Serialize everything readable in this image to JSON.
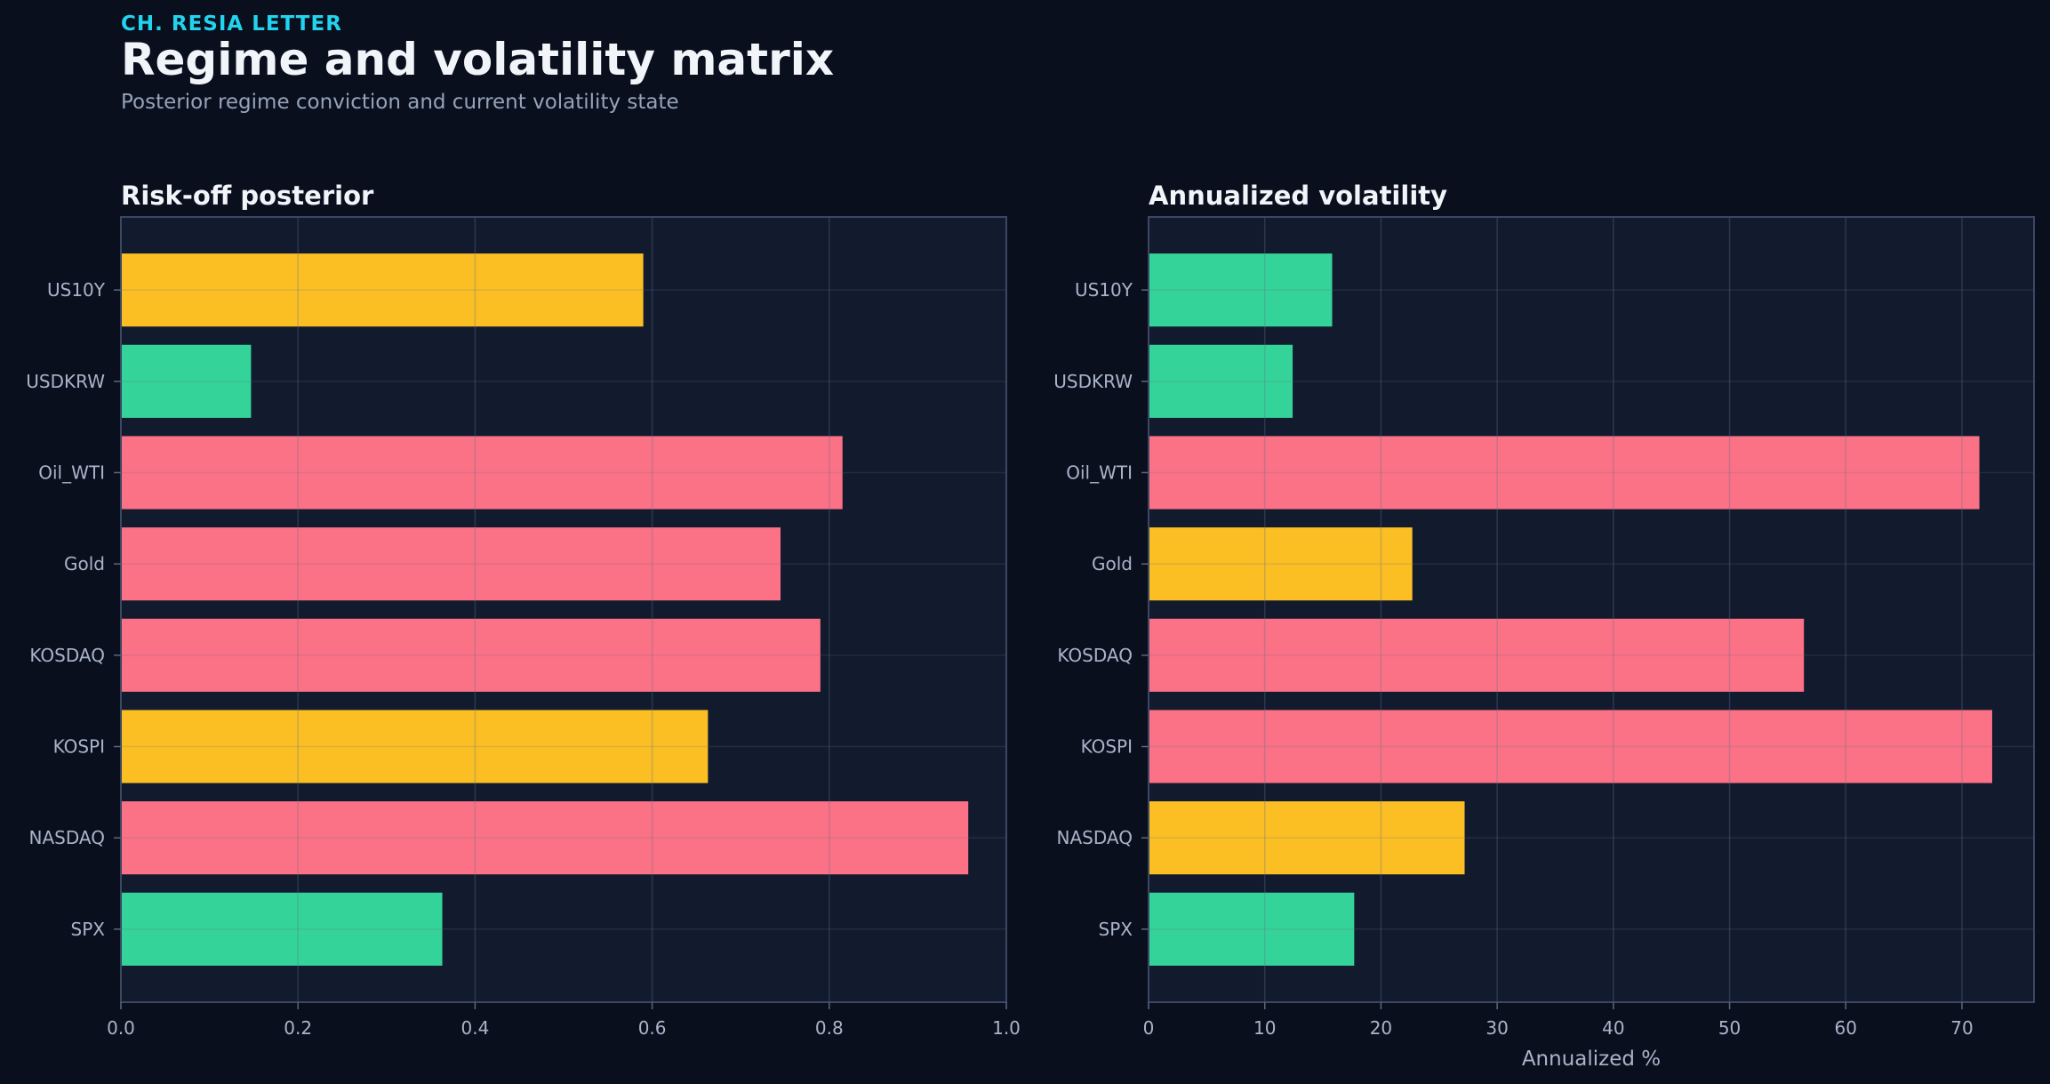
{
  "header": {
    "kicker": "CH. RESIA LETTER",
    "title": "Regime and volatility matrix",
    "subtitle": "Posterior regime conviction and current volatility state"
  },
  "colors": {
    "background": "#0a0f1e",
    "panel": "#121a2e",
    "red": "#fb7185",
    "amber": "#fbbf24",
    "green": "#34d399"
  },
  "chart_data": [
    {
      "type": "bar",
      "orientation": "horizontal",
      "title": "Risk-off posterior",
      "xlabel": "",
      "ylabel": "",
      "xlim": [
        0,
        1.0
      ],
      "xticks": [
        "0.0",
        "0.2",
        "0.4",
        "0.6",
        "0.8",
        "1.0"
      ],
      "xtick_values": [
        0,
        0.2,
        0.4,
        0.6,
        0.8,
        1.0
      ],
      "grid": true,
      "categories": [
        "US10Y",
        "USDKRW",
        "Oil_WTI",
        "Gold",
        "KOSDAQ",
        "KOSPI",
        "NASDAQ",
        "SPX"
      ],
      "values": [
        0.59,
        0.147,
        0.815,
        0.745,
        0.79,
        0.663,
        0.957,
        0.363
      ],
      "bar_colors": [
        "amber",
        "green",
        "red",
        "red",
        "red",
        "amber",
        "red",
        "green"
      ]
    },
    {
      "type": "bar",
      "orientation": "horizontal",
      "title": "Annualized volatility",
      "xlabel": "Annualized %",
      "ylabel": "",
      "xlim": [
        0,
        76.2
      ],
      "xticks": [
        "0",
        "10",
        "20",
        "30",
        "40",
        "50",
        "60",
        "70"
      ],
      "xtick_values": [
        0,
        10,
        20,
        30,
        40,
        50,
        60,
        70
      ],
      "grid": true,
      "categories": [
        "US10Y",
        "USDKRW",
        "Oil_WTI",
        "Gold",
        "KOSDAQ",
        "KOSPI",
        "NASDAQ",
        "SPX"
      ],
      "values": [
        15.8,
        12.4,
        71.5,
        22.7,
        56.4,
        72.6,
        27.2,
        17.7
      ],
      "bar_colors": [
        "green",
        "green",
        "red",
        "amber",
        "red",
        "red",
        "amber",
        "green"
      ]
    }
  ]
}
